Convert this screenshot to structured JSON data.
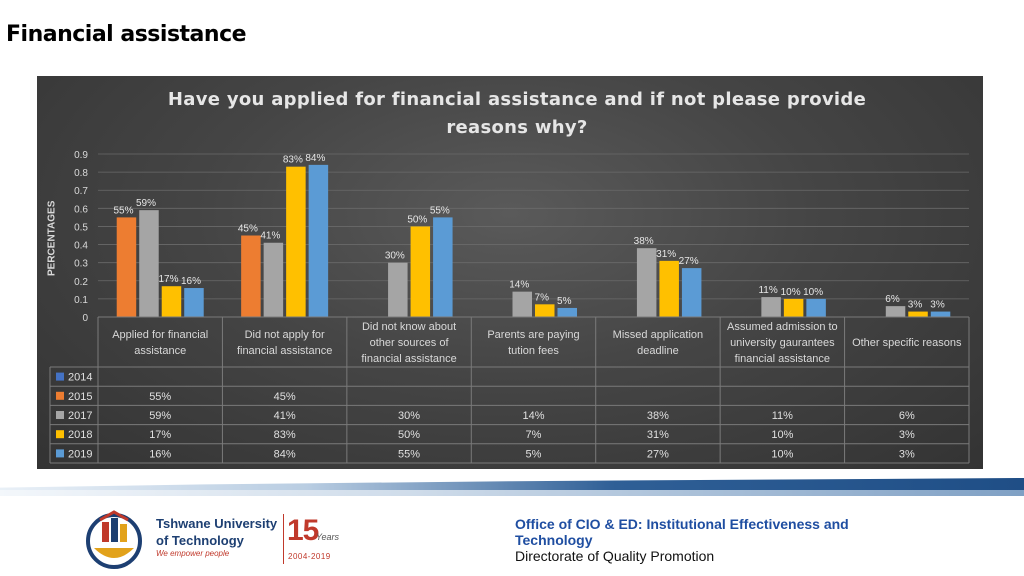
{
  "slide": {
    "title": "Financial assistance"
  },
  "chart_data": {
    "type": "bar",
    "title": "Have you applied for financial assistance and if not please provide reasons why?",
    "ylabel": "PERCENTAGES",
    "xlabel": "",
    "ylim": [
      0,
      0.9
    ],
    "yticks": [
      "0",
      "0.1",
      "0.2",
      "0.3",
      "0.4",
      "0.5",
      "0.6",
      "0.7",
      "0.8",
      "0.9"
    ],
    "grid": true,
    "legend_placement": "data-table",
    "categories": [
      [
        "Applied for financial",
        "assistance"
      ],
      [
        "Did not apply for",
        "financial assistance"
      ],
      [
        "Did not know about",
        "other sources of",
        "financial assistance"
      ],
      [
        "Parents are paying",
        "tution fees"
      ],
      [
        "Missed application",
        "deadline"
      ],
      [
        "Assumed admission to",
        "university gaurantees",
        "financial assistance"
      ],
      [
        "Other specific reasons"
      ]
    ],
    "series": [
      {
        "name": "2014",
        "color": "#4472c4",
        "values": [
          null,
          null,
          null,
          null,
          null,
          null,
          null
        ],
        "labels": [
          "",
          "",
          "",
          "",
          "",
          "",
          ""
        ]
      },
      {
        "name": "2015",
        "color": "#ed7d31",
        "values": [
          0.55,
          0.45,
          null,
          null,
          null,
          null,
          null
        ],
        "labels": [
          "55%",
          "45%",
          "",
          "",
          "",
          "",
          ""
        ]
      },
      {
        "name": "2017",
        "color": "#a5a5a5",
        "values": [
          0.59,
          0.41,
          0.3,
          0.14,
          0.38,
          0.11,
          0.06
        ],
        "labels": [
          "59%",
          "41%",
          "30%",
          "14%",
          "38%",
          "11%",
          "6%"
        ]
      },
      {
        "name": "2018",
        "color": "#ffc000",
        "values": [
          0.17,
          0.83,
          0.5,
          0.07,
          0.31,
          0.1,
          0.03
        ],
        "labels": [
          "17%",
          "83%",
          "50%",
          "7%",
          "31%",
          "10%",
          "3%"
        ]
      },
      {
        "name": "2019",
        "color": "#5b9bd5",
        "values": [
          0.16,
          0.84,
          0.55,
          0.05,
          0.27,
          0.1,
          0.03
        ],
        "labels": [
          "16%",
          "84%",
          "55%",
          "5%",
          "27%",
          "10%",
          "3%"
        ]
      }
    ]
  },
  "footer": {
    "logo_line1": "Tshwane University",
    "logo_line2": "of Technology",
    "logo_tagline": "We empower people",
    "anniversary_number": "15",
    "anniversary_word": "Years",
    "anniversary_range": "2004-2019",
    "office_line1": "Office of CIO & ED: Institutional  Effectiveness and Technology",
    "office_line2": "Directorate of Quality Promotion"
  }
}
